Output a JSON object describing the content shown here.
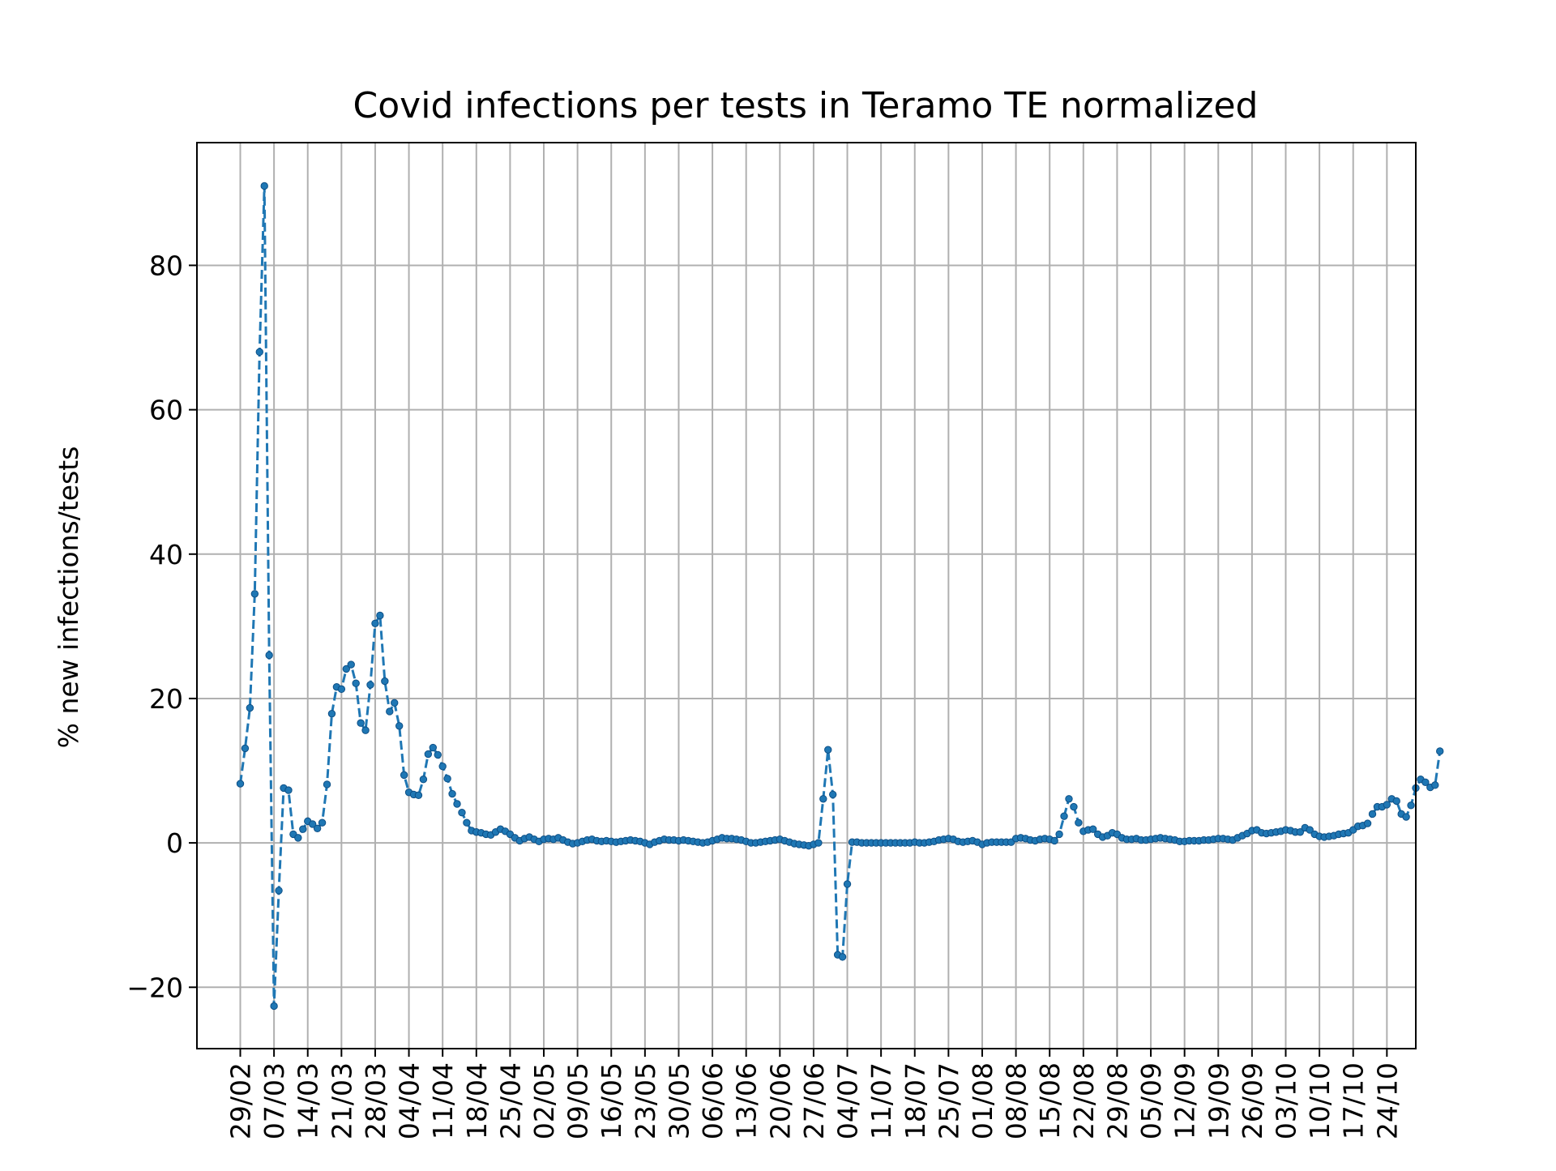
{
  "chart_data": {
    "type": "line",
    "title": "Covid infections per tests in Teramo TE normalized",
    "xlabel": "",
    "ylabel": "% new infections/tests",
    "ylim": [
      -28.5,
      97
    ],
    "yticks": [
      -20,
      0,
      20,
      40,
      60,
      80
    ],
    "ytick_labels": [
      "−20",
      "0",
      "20",
      "40",
      "60",
      "80"
    ],
    "x_start": "2020-02-29",
    "x_tick_labels": [
      "29/02",
      "07/03",
      "14/03",
      "21/03",
      "28/03",
      "04/04",
      "11/04",
      "18/04",
      "25/04",
      "02/05",
      "09/05",
      "16/05",
      "23/05",
      "30/05",
      "06/06",
      "13/06",
      "20/06",
      "27/06",
      "04/07",
      "11/07",
      "18/07",
      "25/07",
      "01/08",
      "08/08",
      "15/08",
      "22/08",
      "29/08",
      "05/09",
      "12/09",
      "19/09",
      "26/09",
      "03/10",
      "10/10",
      "17/10",
      "24/10"
    ],
    "grid": true,
    "line_color": "#1f77b4",
    "line_style": "dashed",
    "marker_color": "#1f77b4",
    "series": [
      {
        "values": [
          8.2,
          13.1,
          18.7,
          34.5,
          68.0,
          91.0,
          26.0,
          -22.6,
          -6.6,
          7.6,
          7.3,
          1.2,
          0.7,
          1.9,
          3.0,
          2.6,
          2.0,
          2.8,
          8.1,
          17.9,
          21.6,
          21.3,
          24.1,
          24.7,
          22.1,
          16.6,
          15.6,
          21.9,
          30.4,
          31.5,
          22.4,
          18.2,
          19.4,
          16.2,
          9.4,
          7.0,
          6.7,
          6.6,
          8.8,
          12.3,
          13.2,
          12.2,
          10.6,
          8.9,
          6.8,
          5.4,
          4.2,
          2.8,
          1.7,
          1.5,
          1.4,
          1.2,
          1.1,
          1.5,
          1.9,
          1.6,
          1.2,
          0.7,
          0.3,
          0.6,
          0.8,
          0.5,
          0.2,
          0.5,
          0.6,
          0.5,
          0.7,
          0.4,
          0.1,
          -0.1,
          0.0,
          0.2,
          0.4,
          0.5,
          0.3,
          0.2,
          0.3,
          0.2,
          0.1,
          0.2,
          0.3,
          0.4,
          0.3,
          0.2,
          0.0,
          -0.2,
          0.1,
          0.3,
          0.5,
          0.4,
          0.4,
          0.3,
          0.4,
          0.3,
          0.2,
          0.1,
          0.0,
          0.1,
          0.3,
          0.5,
          0.7,
          0.6,
          0.6,
          0.5,
          0.4,
          0.2,
          0.0,
          0.0,
          0.1,
          0.2,
          0.3,
          0.4,
          0.5,
          0.3,
          0.1,
          -0.1,
          -0.2,
          -0.3,
          -0.4,
          -0.2,
          0.0,
          6.1,
          12.9,
          6.7,
          -15.5,
          -15.8,
          -5.7,
          0.1,
          0.1,
          0.0,
          0.0,
          0.0,
          0.0,
          0.0,
          0.0,
          0.0,
          0.0,
          0.0,
          0.0,
          0.0,
          0.1,
          0.0,
          0.0,
          0.1,
          0.2,
          0.4,
          0.5,
          0.6,
          0.5,
          0.2,
          0.1,
          0.2,
          0.3,
          0.1,
          -0.2,
          0.0,
          0.1,
          0.1,
          0.1,
          0.1,
          0.1,
          0.6,
          0.7,
          0.6,
          0.4,
          0.3,
          0.5,
          0.6,
          0.5,
          0.3,
          1.2,
          3.7,
          6.1,
          5.0,
          2.8,
          1.6,
          1.8,
          1.9,
          1.2,
          0.8,
          1.0,
          1.4,
          1.2,
          0.7,
          0.5,
          0.5,
          0.6,
          0.4,
          0.4,
          0.5,
          0.6,
          0.7,
          0.6,
          0.5,
          0.4,
          0.2,
          0.2,
          0.3,
          0.3,
          0.3,
          0.4,
          0.4,
          0.5,
          0.6,
          0.6,
          0.5,
          0.4,
          0.7,
          1.0,
          1.3,
          1.7,
          1.8,
          1.4,
          1.3,
          1.4,
          1.5,
          1.6,
          1.8,
          1.7,
          1.5,
          1.5,
          2.1,
          1.8,
          1.2,
          0.9,
          0.8,
          0.9,
          1.0,
          1.2,
          1.3,
          1.4,
          1.8,
          2.3,
          2.4,
          2.7,
          4.0,
          5.0,
          5.0,
          5.3,
          6.1,
          5.8,
          4.0,
          3.6,
          5.2,
          7.6,
          8.8,
          8.4,
          7.7,
          8.0,
          12.7
        ]
      }
    ]
  }
}
